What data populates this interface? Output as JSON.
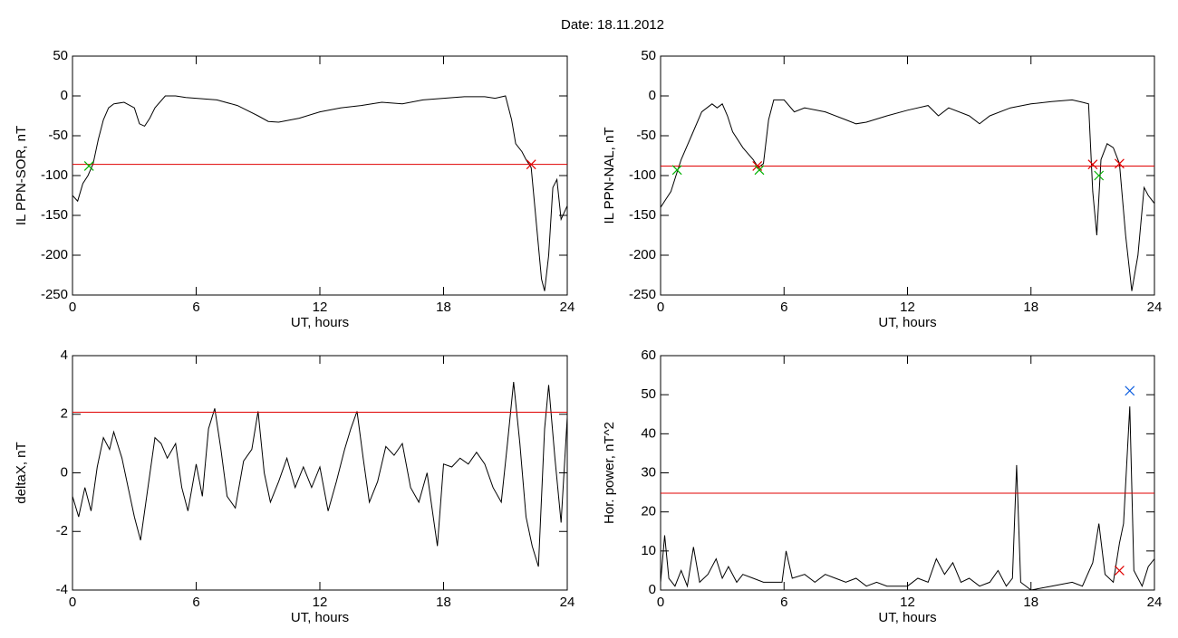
{
  "title": "Date:  18.11.2012",
  "chart_data": [
    {
      "type": "line",
      "ylabel": "IL PPN-SOR, nT",
      "xlabel": "UT, hours",
      "color": "#000000",
      "xlim": [
        0,
        24
      ],
      "xticks": [
        0,
        6,
        12,
        18,
        24
      ],
      "ylim": [
        -250,
        50
      ],
      "yticks": [
        -250,
        -200,
        -150,
        -100,
        -50,
        0,
        50
      ],
      "x": [
        0,
        0.25,
        0.5,
        0.75,
        1,
        1.25,
        1.5,
        1.75,
        2,
        2.5,
        3,
        3.25,
        3.5,
        3.75,
        4,
        4.5,
        5,
        5.5,
        6,
        7,
        8,
        9,
        9.5,
        10,
        11,
        12,
        13,
        14,
        15,
        16,
        17,
        18,
        19,
        20,
        20.5,
        21,
        21.3,
        21.5,
        21.8,
        22,
        22.25,
        22.5,
        22.75,
        22.9,
        23.1,
        23.3,
        23.5,
        23.7,
        24
      ],
      "values": [
        -125,
        -132,
        -110,
        -100,
        -85,
        -55,
        -30,
        -15,
        -10,
        -8,
        -15,
        -35,
        -38,
        -28,
        -15,
        0,
        0,
        -2,
        -3,
        -5,
        -12,
        -25,
        -32,
        -33,
        -28,
        -20,
        -15,
        -12,
        -8,
        -10,
        -5,
        -3,
        -1,
        -1,
        -3,
        0,
        -30,
        -60,
        -70,
        -80,
        -90,
        -160,
        -230,
        -245,
        -200,
        -115,
        -105,
        -155,
        -138
      ],
      "threshold": -86,
      "threshold_color": "#e00000",
      "markers": [
        {
          "x": 0.8,
          "y": -88,
          "color": "#00b000"
        },
        {
          "x": 22.25,
          "y": -86,
          "color": "#e00000"
        }
      ]
    },
    {
      "type": "line",
      "ylabel": "IL PPN-NAL, nT",
      "xlabel": "UT, hours",
      "color": "#000000",
      "xlim": [
        0,
        24
      ],
      "xticks": [
        0,
        6,
        12,
        18,
        24
      ],
      "ylim": [
        -250,
        50
      ],
      "yticks": [
        -250,
        -200,
        -150,
        -100,
        -50,
        0,
        50
      ],
      "x": [
        0,
        0.25,
        0.5,
        0.75,
        1,
        1.5,
        2,
        2.5,
        2.75,
        3,
        3.25,
        3.5,
        4,
        4.5,
        4.75,
        5,
        5.25,
        5.5,
        6,
        6.5,
        7,
        8,
        9,
        9.5,
        10,
        11,
        12,
        13,
        13.5,
        14,
        15,
        15.5,
        16,
        17,
        18,
        19,
        20,
        20.5,
        20.8,
        21,
        21.2,
        21.4,
        21.7,
        22,
        22.3,
        22.6,
        22.9,
        23.2,
        23.5,
        23.7,
        24
      ],
      "values": [
        -140,
        -130,
        -120,
        -100,
        -80,
        -50,
        -20,
        -10,
        -15,
        -10,
        -25,
        -45,
        -65,
        -80,
        -90,
        -85,
        -30,
        -5,
        -5,
        -20,
        -15,
        -20,
        -30,
        -35,
        -33,
        -25,
        -18,
        -12,
        -25,
        -15,
        -25,
        -35,
        -25,
        -15,
        -10,
        -7,
        -5,
        -8,
        -10,
        -120,
        -175,
        -80,
        -60,
        -65,
        -85,
        -175,
        -245,
        -200,
        -115,
        -125,
        -135
      ],
      "threshold": -88,
      "threshold_color": "#e00000",
      "markers": [
        {
          "x": 0.8,
          "y": -93,
          "color": "#00b000"
        },
        {
          "x": 4.7,
          "y": -88,
          "color": "#e00000"
        },
        {
          "x": 4.8,
          "y": -93,
          "color": "#00b000"
        },
        {
          "x": 21.0,
          "y": -86,
          "color": "#e00000"
        },
        {
          "x": 21.3,
          "y": -100,
          "color": "#00b000"
        },
        {
          "x": 22.3,
          "y": -85,
          "color": "#e00000"
        }
      ]
    },
    {
      "type": "line",
      "ylabel": "deltaX, nT",
      "xlabel": "UT, hours",
      "color": "#000000",
      "xlim": [
        0,
        24
      ],
      "xticks": [
        0,
        6,
        12,
        18,
        24
      ],
      "ylim": [
        -4,
        4
      ],
      "yticks": [
        -4,
        -2,
        0,
        2,
        4
      ],
      "x": [
        0,
        0.3,
        0.6,
        0.9,
        1.2,
        1.5,
        1.8,
        2,
        2.4,
        2.7,
        3,
        3.3,
        3.6,
        4,
        4.3,
        4.6,
        5,
        5.3,
        5.6,
        6,
        6.3,
        6.6,
        6.9,
        7.2,
        7.5,
        7.9,
        8.3,
        8.7,
        9,
        9.3,
        9.6,
        10,
        10.4,
        10.8,
        11.2,
        11.6,
        12,
        12.4,
        12.8,
        13.2,
        13.5,
        13.8,
        14.1,
        14.4,
        14.8,
        15.2,
        15.6,
        16,
        16.4,
        16.8,
        17.2,
        17.5,
        17.7,
        18,
        18.4,
        18.8,
        19.2,
        19.6,
        20,
        20.4,
        20.8,
        21.1,
        21.4,
        21.7,
        22,
        22.3,
        22.6,
        22.9,
        23.1,
        23.4,
        23.7,
        24
      ],
      "values": [
        -0.8,
        -1.5,
        -0.5,
        -1.3,
        0.2,
        1.2,
        0.8,
        1.4,
        0.5,
        -0.5,
        -1.5,
        -2.3,
        -0.8,
        1.2,
        1.0,
        0.5,
        1.0,
        -0.5,
        -1.3,
        0.3,
        -0.8,
        1.5,
        2.2,
        0.8,
        -0.8,
        -1.2,
        0.4,
        0.8,
        2.1,
        0.0,
        -1.0,
        -0.3,
        0.5,
        -0.5,
        0.2,
        -0.5,
        0.2,
        -1.3,
        -0.3,
        0.8,
        1.5,
        2.1,
        0.5,
        -1.0,
        -0.3,
        0.9,
        0.6,
        1.0,
        -0.5,
        -1.0,
        0.0,
        -1.5,
        -2.5,
        0.3,
        0.2,
        0.5,
        0.3,
        0.7,
        0.3,
        -0.5,
        -1.0,
        1.0,
        3.1,
        1.0,
        -1.5,
        -2.5,
        -3.2,
        1.5,
        3.0,
        0.5,
        -1.7,
        1.9
      ],
      "threshold": 2.07,
      "threshold_color": "#e00000",
      "markers": []
    },
    {
      "type": "line",
      "ylabel": "Hor. power, nT^2",
      "xlabel": "UT, hours",
      "color": "#000000",
      "xlim": [
        0,
        24
      ],
      "xticks": [
        0,
        6,
        12,
        18,
        24
      ],
      "ylim": [
        0,
        60
      ],
      "yticks": [
        0,
        10,
        20,
        30,
        40,
        50,
        60
      ],
      "x": [
        0,
        0.2,
        0.4,
        0.7,
        1,
        1.3,
        1.6,
        1.9,
        2.3,
        2.7,
        3,
        3.3,
        3.7,
        4,
        4.5,
        5,
        5.5,
        5.9,
        6.1,
        6.4,
        7,
        7.5,
        8,
        8.5,
        9,
        9.5,
        10,
        10.5,
        11,
        11.5,
        12,
        12.5,
        13,
        13.4,
        13.8,
        14.2,
        14.6,
        15,
        15.5,
        16,
        16.4,
        16.8,
        17.1,
        17.3,
        17.5,
        18,
        19,
        20,
        20.5,
        21,
        21.3,
        21.6,
        22,
        22.3,
        22.5,
        22.8,
        23,
        23.4,
        23.7,
        24
      ],
      "values": [
        2,
        14,
        3,
        1,
        5,
        1,
        11,
        2,
        4,
        8,
        3,
        6,
        2,
        4,
        3,
        2,
        2,
        2,
        10,
        3,
        4,
        2,
        4,
        3,
        2,
        3,
        1,
        2,
        1,
        1,
        1,
        3,
        2,
        8,
        4,
        7,
        2,
        3,
        1,
        2,
        5,
        1,
        3,
        32,
        2,
        0,
        1,
        2,
        1,
        7,
        17,
        4,
        2,
        12,
        17,
        47,
        5,
        1,
        6,
        8
      ],
      "threshold": 24.8,
      "threshold_color": "#e00000",
      "markers": [
        {
          "x": 22.8,
          "y": 51,
          "color": "#1060e0"
        },
        {
          "x": 22.3,
          "y": 5,
          "color": "#e00000"
        }
      ]
    }
  ]
}
